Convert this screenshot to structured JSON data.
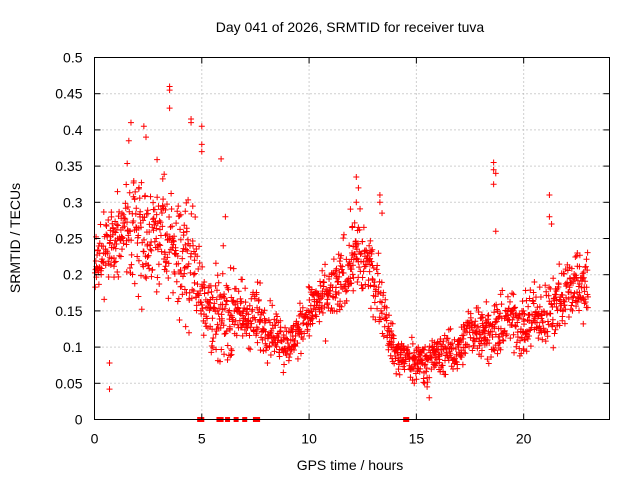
{
  "chart_data": {
    "type": "scatter",
    "title": "Day 041 of 2026, SRMTID for receiver tuva",
    "xlabel": "GPS time / hours",
    "ylabel": "SRMTID / TECUs",
    "xlim": [
      0,
      24
    ],
    "ylim": [
      0,
      0.5
    ],
    "xticks": [
      0,
      5,
      10,
      15,
      20
    ],
    "yticks": [
      0,
      0.05,
      0.1,
      0.15,
      0.2,
      0.25,
      0.3,
      0.35,
      0.4,
      0.45,
      0.5
    ],
    "grid": true,
    "marker": "plus",
    "color": "#ff0000",
    "trend": [
      [
        0.0,
        0.21
      ],
      [
        0.5,
        0.23
      ],
      [
        1.0,
        0.25
      ],
      [
        1.5,
        0.27
      ],
      [
        2.0,
        0.26
      ],
      [
        2.5,
        0.24
      ],
      [
        3.0,
        0.26
      ],
      [
        3.5,
        0.24
      ],
      [
        4.0,
        0.23
      ],
      [
        4.5,
        0.22
      ],
      [
        5.0,
        0.18
      ],
      [
        5.5,
        0.15
      ],
      [
        6.0,
        0.14
      ],
      [
        6.5,
        0.15
      ],
      [
        7.0,
        0.14
      ],
      [
        7.5,
        0.14
      ],
      [
        8.0,
        0.13
      ],
      [
        8.5,
        0.12
      ],
      [
        9.0,
        0.1
      ],
      [
        9.5,
        0.12
      ],
      [
        10.0,
        0.15
      ],
      [
        10.5,
        0.16
      ],
      [
        11.0,
        0.17
      ],
      [
        11.5,
        0.19
      ],
      [
        12.0,
        0.23
      ],
      [
        12.5,
        0.22
      ],
      [
        13.0,
        0.2
      ],
      [
        13.5,
        0.15
      ],
      [
        14.0,
        0.09
      ],
      [
        14.5,
        0.085
      ],
      [
        15.0,
        0.08
      ],
      [
        15.5,
        0.085
      ],
      [
        16.0,
        0.09
      ],
      [
        16.5,
        0.09
      ],
      [
        17.0,
        0.1
      ],
      [
        17.5,
        0.12
      ],
      [
        18.0,
        0.13
      ],
      [
        18.5,
        0.12
      ],
      [
        19.0,
        0.13
      ],
      [
        19.5,
        0.14
      ],
      [
        20.0,
        0.13
      ],
      [
        20.5,
        0.14
      ],
      [
        21.0,
        0.14
      ],
      [
        21.5,
        0.16
      ],
      [
        22.0,
        0.18
      ],
      [
        22.5,
        0.19
      ],
      [
        23.0,
        0.18
      ]
    ],
    "spread": [
      [
        0.0,
        0.05
      ],
      [
        2.0,
        0.09
      ],
      [
        4.0,
        0.1
      ],
      [
        5.0,
        0.07
      ],
      [
        8.0,
        0.05
      ],
      [
        9.0,
        0.03
      ],
      [
        11.0,
        0.05
      ],
      [
        12.5,
        0.07
      ],
      [
        14.0,
        0.03
      ],
      [
        16.0,
        0.03
      ],
      [
        18.0,
        0.04
      ],
      [
        20.0,
        0.05
      ],
      [
        23.0,
        0.05
      ]
    ],
    "outliers": [
      [
        0.7,
        0.042
      ],
      [
        0.7,
        0.078
      ],
      [
        1.7,
        0.41
      ],
      [
        1.6,
        0.385
      ],
      [
        2.3,
        0.405
      ],
      [
        2.4,
        0.39
      ],
      [
        3.5,
        0.46
      ],
      [
        3.5,
        0.455
      ],
      [
        3.5,
        0.43
      ],
      [
        4.5,
        0.415
      ],
      [
        4.5,
        0.41
      ],
      [
        5.0,
        0.405
      ],
      [
        5.0,
        0.38
      ],
      [
        5.0,
        0.37
      ],
      [
        5.9,
        0.36
      ],
      [
        6.0,
        0.24
      ],
      [
        6.1,
        0.28
      ],
      [
        18.6,
        0.355
      ],
      [
        18.6,
        0.345
      ],
      [
        18.7,
        0.34
      ],
      [
        18.6,
        0.325
      ],
      [
        18.7,
        0.26
      ],
      [
        20.0,
        0.12
      ],
      [
        20.5,
        0.19
      ],
      [
        21.2,
        0.31
      ],
      [
        21.2,
        0.28
      ],
      [
        21.3,
        0.27
      ],
      [
        12.2,
        0.335
      ],
      [
        12.3,
        0.32
      ],
      [
        12.2,
        0.3
      ],
      [
        13.3,
        0.31
      ],
      [
        13.3,
        0.3
      ],
      [
        13.4,
        0.285
      ],
      [
        15.6,
        0.03
      ],
      [
        15.5,
        0.045
      ],
      [
        8.8,
        0.065
      ],
      [
        14.9,
        0.05
      ]
    ],
    "baseline_points": [
      4.9,
      5.0,
      5.8,
      5.9,
      6.2,
      6.6,
      7.0,
      7.5,
      7.6,
      14.5,
      14.55
    ]
  }
}
